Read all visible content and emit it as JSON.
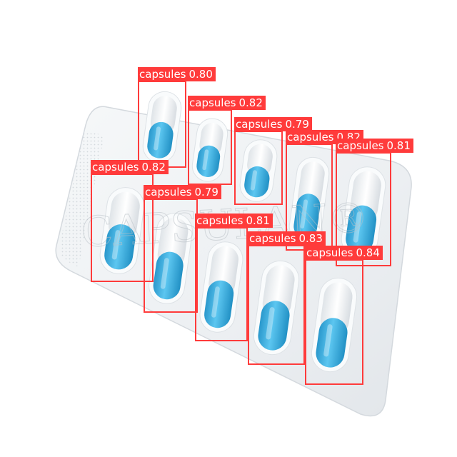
{
  "image": {
    "subject": "blister pack of blue and white capsules",
    "watermark_text": "CAPSULAN®",
    "colors": {
      "background": "#ffffff",
      "blister": "#eef1f3",
      "capsule_blue": "#3bb0e0",
      "capsule_white": "#f4f6f8",
      "detection_box": "#ff3b3b",
      "detection_label_text": "#ffffff"
    }
  },
  "detections": [
    {
      "class": "capsules",
      "score": "0.80"
    },
    {
      "class": "capsules",
      "score": "0.82"
    },
    {
      "class": "capsules",
      "score": "0.79"
    },
    {
      "class": "capsules",
      "score": "0.82"
    },
    {
      "class": "capsules",
      "score": "0.81"
    },
    {
      "class": "capsules",
      "score": "0.82"
    },
    {
      "class": "capsules",
      "score": "0.79"
    },
    {
      "class": "capsules",
      "score": "0.81"
    },
    {
      "class": "capsules",
      "score": "0.83"
    },
    {
      "class": "capsules",
      "score": "0.84"
    }
  ]
}
